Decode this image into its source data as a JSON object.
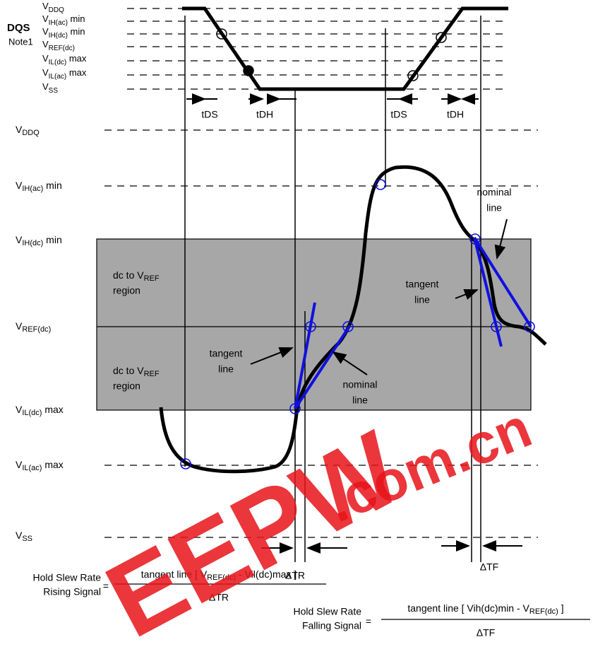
{
  "dqs": {
    "title": "DQS",
    "note": "Note1",
    "levels": [
      {
        "base": "V",
        "sub": "DDQ"
      },
      {
        "base": "V",
        "sub": "IH(ac)",
        "suffix": " min"
      },
      {
        "base": "V",
        "sub": "IH(dc)",
        "suffix": " min"
      },
      {
        "base": "V",
        "sub": "REF(dc)"
      },
      {
        "base": "V",
        "sub": "IL(dc)",
        "suffix": " max"
      },
      {
        "base": "V",
        "sub": "IL(ac)",
        "suffix": " max"
      },
      {
        "base": "V",
        "sub": "SS"
      }
    ],
    "timings": [
      "tDS",
      "tDH",
      "tDS",
      "tDH"
    ]
  },
  "signal": {
    "levels": [
      {
        "base": "V",
        "sub": "DDQ"
      },
      {
        "base": "V",
        "sub": "IH(ac)",
        "suffix": " min"
      },
      {
        "base": "V",
        "sub": "IH(dc)",
        "suffix": " min"
      },
      {
        "base": "V",
        "sub": "REF(dc)"
      },
      {
        "base": "V",
        "sub": "IL(dc)",
        "suffix": " max"
      },
      {
        "base": "V",
        "sub": "IL(ac)",
        "suffix": " max"
      },
      {
        "base": "V",
        "sub": "SS"
      }
    ],
    "regions": [
      {
        "base": "dc to V",
        "sub": "REF",
        "line2": "region"
      },
      {
        "base": "dc to V",
        "sub": "REF",
        "line2": "region"
      }
    ],
    "annotations": [
      {
        "line1": "tangent",
        "line2": "line"
      },
      {
        "line1": "nominal",
        "line2": "line"
      },
      {
        "line1": "nominal",
        "line2": "line"
      },
      {
        "line1": "tangent",
        "line2": "line"
      }
    ],
    "deltas": [
      "ΔTR",
      "ΔTF"
    ]
  },
  "formulas": [
    {
      "label1": "Hold Slew Rate",
      "label2": "Rising Signal",
      "eq": "=",
      "numerator": {
        "base": "tangent line [ V",
        "sub": "REF(dc)",
        "suffix": " - Vil(dc)max ]"
      },
      "denominator": "ΔTR"
    },
    {
      "label1": "Hold Slew Rate",
      "label2": "Falling Signal",
      "eq": "=",
      "numerator": {
        "base": "tangent line [ Vih(dc)min - V",
        "sub": "REF(dc)",
        "suffix": " ]"
      },
      "denominator": "ΔTF"
    }
  ],
  "watermark": [
    "EEPW",
    ".com.cn"
  ]
}
